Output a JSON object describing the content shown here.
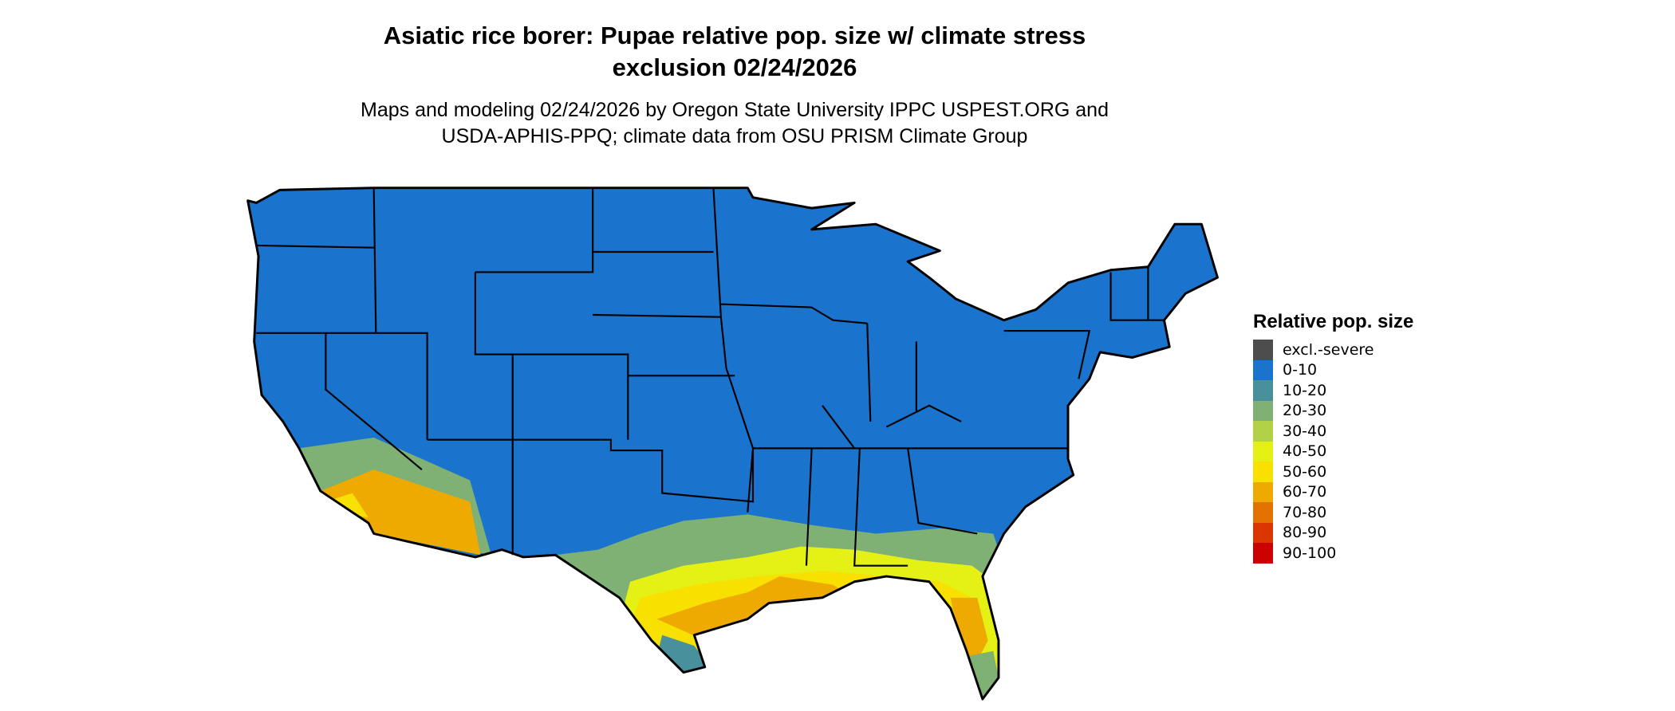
{
  "title": {
    "line1": "Asiatic rice borer: Pupae relative pop. size w/ climate stress",
    "line2": "exclusion 02/24/2026"
  },
  "subtitle": {
    "line1": "Maps and modeling 02/24/2026 by Oregon State University IPPC USPEST.ORG and",
    "line2": "USDA-APHIS-PPQ; climate data from OSU PRISM Climate Group"
  },
  "legend": {
    "title": "Relative pop. size",
    "items": [
      {
        "label": "excl.-severe",
        "color": "#4d4d4d"
      },
      {
        "label": "0-10",
        "color": "#1a73cc"
      },
      {
        "label": "10-20",
        "color": "#48919c"
      },
      {
        "label": "20-30",
        "color": "#7fb074"
      },
      {
        "label": "30-40",
        "color": "#b3d146"
      },
      {
        "label": "40-50",
        "color": "#e5f014"
      },
      {
        "label": "50-60",
        "color": "#f8e000"
      },
      {
        "label": "60-70",
        "color": "#eeaa00"
      },
      {
        "label": "70-80",
        "color": "#e37200"
      },
      {
        "label": "80-90",
        "color": "#db3500"
      },
      {
        "label": "90-100",
        "color": "#cc0000"
      }
    ]
  }
}
